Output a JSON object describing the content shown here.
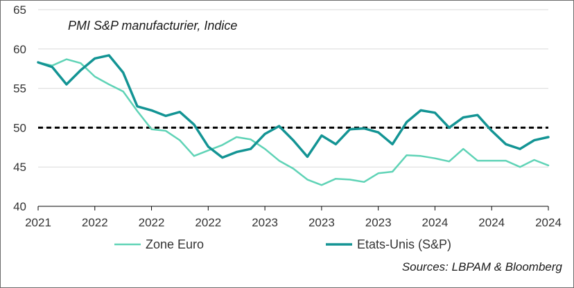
{
  "chart_data": {
    "type": "line",
    "title": "PMI S&P manufacturier, Indice",
    "source": "Sources: LBPAM & Bloomberg",
    "ylim": [
      40,
      65
    ],
    "yticks": [
      40,
      45,
      50,
      55,
      60,
      65
    ],
    "xticks": [
      "2021",
      "2022",
      "2022",
      "2022",
      "2023",
      "2023",
      "2023",
      "2024",
      "2024",
      "2024"
    ],
    "reference_line": {
      "value": 50,
      "style": "dashed",
      "color": "#000000"
    },
    "colors": {
      "zone_euro": "#5fd3b6",
      "etats_unis": "#139494",
      "grid": "#d9d9d9",
      "axis": "#000000"
    },
    "series": [
      {
        "name": "Zone Euro",
        "values": [
          58.3,
          57.9,
          58.7,
          58.2,
          56.5,
          55.5,
          54.6,
          52.1,
          49.8,
          49.6,
          48.4,
          46.4,
          47.1,
          47.8,
          48.8,
          48.5,
          47.3,
          45.8,
          44.8,
          43.4,
          42.7,
          43.5,
          43.4,
          43.1,
          44.2,
          44.4,
          46.5,
          46.4,
          46.1,
          45.7,
          47.3,
          45.8,
          45.8,
          45.8,
          45.0,
          45.9,
          45.2
        ]
      },
      {
        "name": "Etats-Unis (S&P)",
        "values": [
          58.3,
          57.7,
          55.5,
          57.3,
          58.8,
          59.2,
          57.0,
          52.7,
          52.2,
          51.5,
          52.0,
          50.4,
          47.6,
          46.2,
          46.9,
          47.3,
          49.2,
          50.2,
          48.4,
          46.3,
          49.0,
          47.9,
          49.8,
          49.9,
          49.4,
          47.9,
          50.7,
          52.2,
          51.9,
          50.0,
          51.3,
          51.6,
          49.6,
          47.9,
          47.3,
          48.4,
          48.8
        ]
      }
    ]
  }
}
